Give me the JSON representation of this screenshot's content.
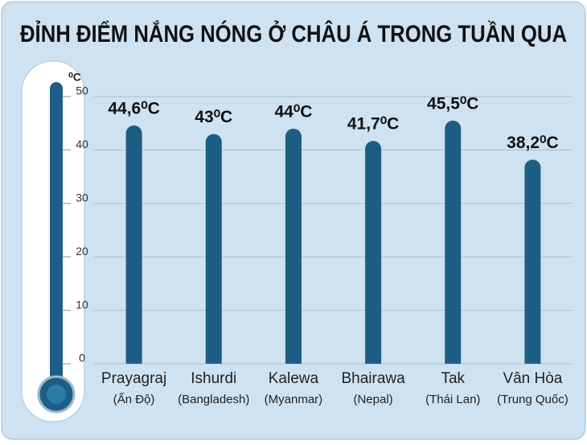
{
  "chart_data": {
    "type": "bar",
    "title": "ĐỈNH ĐIỂM NẮNG NÓNG Ở CHÂU Á TRONG TUẦN QUA",
    "ylabel": "⁰C",
    "categories": [
      "Prayagraj",
      "Ishurdi",
      "Kalewa",
      "Bhairawa",
      "Tak",
      "Vân Hòa"
    ],
    "subcategories": [
      "(Ấn Độ)",
      "(Bangladesh)",
      "(Myanmar)",
      "(Nepal)",
      "(Thái Lan)",
      "(Trung Quốc)"
    ],
    "values": [
      44.6,
      43,
      44,
      41.7,
      45.5,
      38.2
    ],
    "value_labels": [
      "44,6⁰C",
      "43⁰C",
      "44⁰C",
      "41,7⁰C",
      "45,5⁰C",
      "38,2⁰C"
    ],
    "color": "#1d5e86",
    "ylim": [
      0,
      50
    ],
    "yticks": [
      0,
      10,
      20,
      30,
      40,
      50
    ],
    "grid": true
  }
}
